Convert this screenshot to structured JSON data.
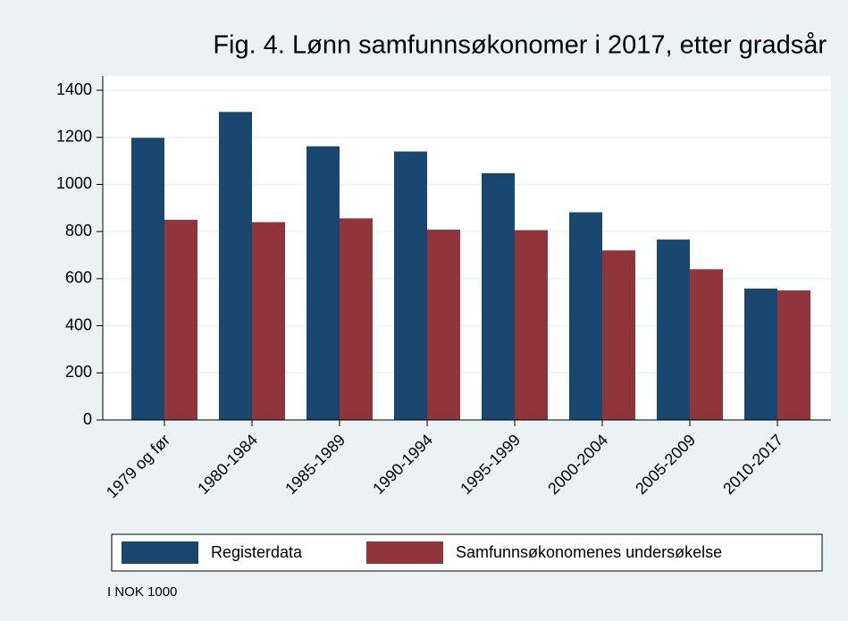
{
  "chart_data": {
    "type": "bar",
    "title": "Fig. 4. Lønn samfunnsøkonomer i 2017, etter gradsår",
    "categories": [
      "1979 og før",
      "1980-1984",
      "1985-1989",
      "1990-1994",
      "1995-1999",
      "2000-2004",
      "2005-2009",
      "2010-2017"
    ],
    "series": [
      {
        "name": "Registerdata",
        "color": "#1a476f",
        "values": [
          1198,
          1308,
          1162,
          1140,
          1048,
          882,
          766,
          558
        ]
      },
      {
        "name": "Samfunnsøkonomenes undersøkelse",
        "color": "#90353b",
        "values": [
          850,
          840,
          856,
          808,
          806,
          720,
          640,
          550
        ]
      }
    ],
    "ylim": [
      0,
      1400
    ],
    "yticks": [
      0,
      200,
      400,
      600,
      800,
      1000,
      1200,
      1400
    ],
    "grid": true,
    "note": "I NOK 1000"
  }
}
